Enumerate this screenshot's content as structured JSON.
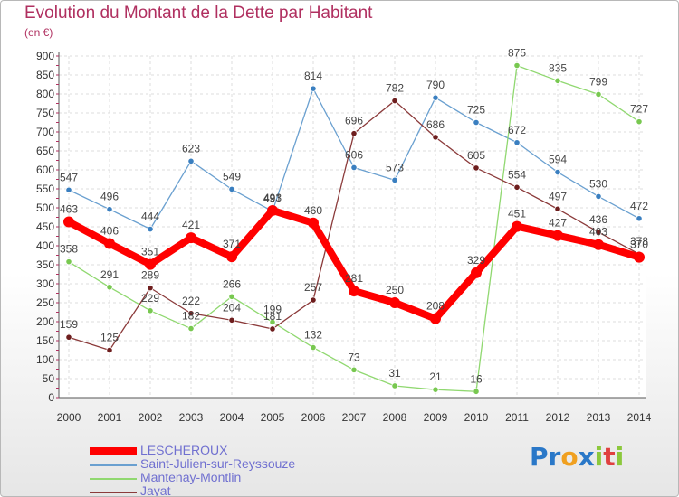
{
  "title": "Evolution du Montant de la Dette par Habitant",
  "subtitle": "(en €)",
  "logo_text": "Proxiti",
  "chart_data": {
    "type": "line",
    "title": "Evolution du Montant de la Dette par Habitant",
    "ylabel": "(en €)",
    "ylim": [
      0,
      900
    ],
    "yticks": [
      0,
      50,
      100,
      150,
      200,
      250,
      300,
      350,
      400,
      450,
      500,
      550,
      600,
      650,
      700,
      750,
      800,
      850,
      900
    ],
    "x": [
      "2000",
      "2001",
      "2002",
      "2003",
      "2004",
      "2005",
      "2006",
      "2007",
      "2008",
      "2009",
      "2010",
      "2011",
      "2012",
      "2013",
      "2014"
    ],
    "grid": true,
    "legend_position": "bottom-left",
    "series": [
      {
        "name": "LESCHEROUX",
        "color": "#ff0000",
        "values": [
          463,
          406,
          351,
          421,
          371,
          493,
          460,
          281,
          250,
          208,
          329,
          451,
          427,
          403,
          370
        ],
        "labels": [
          "463",
          "406",
          "351",
          "421",
          "371",
          "493",
          "460",
          "281",
          "250",
          "208",
          "329",
          "451",
          "427",
          "403",
          "370"
        ]
      },
      {
        "name": "Saint-Julien-sur-Reyssouze",
        "color": "#6aa0d0",
        "marker": "#3a7fc0",
        "values": [
          547,
          496,
          444,
          623,
          549,
          491,
          814,
          606,
          573,
          790,
          725,
          672,
          594,
          530,
          472
        ],
        "labels": [
          "547",
          "496",
          "444",
          "623",
          "549",
          "491",
          "814",
          "606",
          "573",
          "790",
          "725",
          "672",
          "594",
          "530",
          "472"
        ]
      },
      {
        "name": "Mantenay-Montlin",
        "color": "#90d870",
        "marker": "#78c850",
        "values": [
          358,
          291,
          229,
          182,
          266,
          199,
          132,
          73,
          31,
          21,
          16,
          875,
          835,
          799,
          727
        ],
        "labels": [
          "358",
          "291",
          "229",
          "182",
          "266",
          "199",
          "132",
          "73",
          "31",
          "21",
          "16",
          "875",
          "835",
          "799",
          "727"
        ]
      },
      {
        "name": "Jayat",
        "color": "#8b3a3a",
        "marker": "#6e1e1e",
        "values": [
          159,
          125,
          289,
          222,
          204,
          181,
          257,
          696,
          782,
          686,
          605,
          554,
          497,
          436,
          378
        ],
        "labels": [
          "159",
          "125",
          "289",
          "222",
          "204",
          "181",
          "257",
          "696",
          "782",
          "686",
          "605",
          "554",
          "497",
          "436",
          "378"
        ]
      }
    ]
  }
}
